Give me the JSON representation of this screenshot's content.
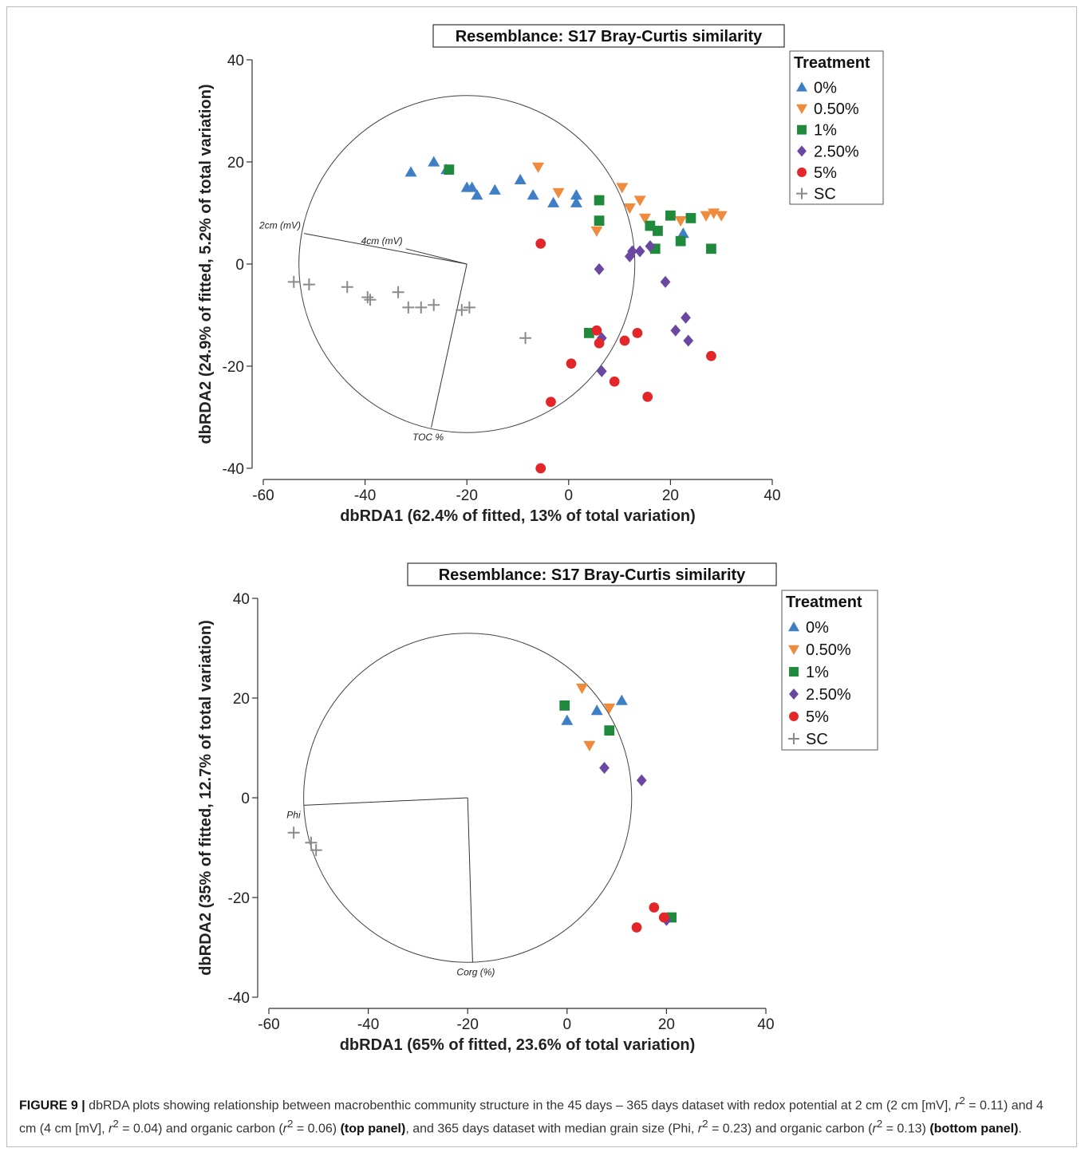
{
  "colors": {
    "0%": "#3f7fc6",
    "0.50%": "#f08a3c",
    "1%": "#1f8a3c",
    "2.50%": "#6a48a2",
    "5%": "#e3262a",
    "SC": "#8a8a8a"
  },
  "chart_data": [
    {
      "type": "scatter",
      "title": "Resemblance: S17 Bray-Curtis similarity",
      "xlabel": "dbRDA1 (62.4% of fitted, 13% of total variation)",
      "ylabel": "dbRDA2 (24.9% of fitted, 5.2% of total variation)",
      "xlim": [
        -60,
        40
      ],
      "ylim": [
        -40,
        40
      ],
      "xticks": [
        -60,
        -40,
        -20,
        0,
        20,
        40
      ],
      "yticks": [
        -40,
        -20,
        0,
        20,
        40
      ],
      "legend_title": "Treatment",
      "legend_position": "top-right",
      "circle": {
        "cx": -20,
        "cy": 0,
        "r": 33
      },
      "vectors": [
        {
          "label": "2cm (mV)",
          "x": -52,
          "y": 6
        },
        {
          "label": "4cm (mV)",
          "x": -32,
          "y": 3
        },
        {
          "label": "TOC %",
          "x": -27,
          "y": -32
        }
      ],
      "series": [
        {
          "name": "0%",
          "marker": "triangle-up",
          "points": [
            [
              -31,
              18
            ],
            [
              -26.5,
              20
            ],
            [
              -24,
              18.5
            ],
            [
              -20,
              15
            ],
            [
              -19,
              15
            ],
            [
              -18,
              13.5
            ],
            [
              -14.5,
              14.5
            ],
            [
              -9.5,
              16.5
            ],
            [
              -7,
              13.5
            ],
            [
              -3,
              12
            ],
            [
              1.5,
              13.5
            ],
            [
              1.5,
              12
            ],
            [
              22.5,
              6
            ]
          ]
        },
        {
          "name": "0.50%",
          "marker": "triangle-down",
          "points": [
            [
              -6,
              19
            ],
            [
              -2,
              14
            ],
            [
              5.5,
              6.5
            ],
            [
              10.5,
              15
            ],
            [
              12,
              11
            ],
            [
              14,
              12.5
            ],
            [
              15,
              9
            ],
            [
              22,
              8.5
            ],
            [
              27,
              9.5
            ],
            [
              28.5,
              10
            ],
            [
              30,
              9.5
            ]
          ]
        },
        {
          "name": "1%",
          "marker": "square",
          "points": [
            [
              -23.5,
              18.5
            ],
            [
              6,
              12.5
            ],
            [
              6,
              8.5
            ],
            [
              16,
              7.5
            ],
            [
              17.5,
              6.5
            ],
            [
              17,
              3
            ],
            [
              20,
              9.5
            ],
            [
              22,
              4.5
            ],
            [
              24,
              9
            ],
            [
              28,
              3
            ],
            [
              4,
              -13.5
            ]
          ]
        },
        {
          "name": "2.50%",
          "marker": "diamond",
          "points": [
            [
              6,
              -1
            ],
            [
              12,
              1.5
            ],
            [
              12.5,
              2.5
            ],
            [
              14,
              2.5
            ],
            [
              16,
              3.5
            ],
            [
              19,
              -3.5
            ],
            [
              21,
              -13
            ],
            [
              23,
              -10.5
            ],
            [
              23.5,
              -15
            ],
            [
              6.5,
              -14.5
            ],
            [
              6.5,
              -21
            ]
          ]
        },
        {
          "name": "5%",
          "marker": "circle",
          "points": [
            [
              -5.5,
              4
            ],
            [
              5.5,
              -13
            ],
            [
              6,
              -15.5
            ],
            [
              11,
              -15
            ],
            [
              13.5,
              -13.5
            ],
            [
              28,
              -18
            ],
            [
              0.5,
              -19.5
            ],
            [
              9,
              -23
            ],
            [
              15.5,
              -26
            ],
            [
              -3.5,
              -27
            ],
            [
              -5.5,
              -40
            ]
          ]
        },
        {
          "name": "SC",
          "marker": "plus",
          "points": [
            [
              -54,
              -3.5
            ],
            [
              -51,
              -4
            ],
            [
              -43.5,
              -4.5
            ],
            [
              -39.5,
              -6.5
            ],
            [
              -39,
              -7
            ],
            [
              -33.5,
              -5.5
            ],
            [
              -31.5,
              -8.5
            ],
            [
              -29,
              -8.5
            ],
            [
              -26.5,
              -8
            ],
            [
              -21,
              -9
            ],
            [
              -19.5,
              -8.5
            ],
            [
              -8.5,
              -14.5
            ]
          ]
        }
      ]
    },
    {
      "type": "scatter",
      "title": "Resemblance: S17 Bray-Curtis similarity",
      "xlabel": "dbRDA1 (65% of fitted, 23.6% of total variation)",
      "ylabel": "dbRDA2 (35% of fitted, 12.7% of total variation)",
      "xlim": [
        -60,
        40
      ],
      "ylim": [
        -40,
        40
      ],
      "xticks": [
        -60,
        -40,
        -20,
        0,
        20,
        40
      ],
      "yticks": [
        -40,
        -20,
        0,
        20,
        40
      ],
      "legend_title": "Treatment",
      "legend_position": "top-right",
      "circle": {
        "cx": -20,
        "cy": 0,
        "r": 33
      },
      "vectors": [
        {
          "label": "Phi",
          "x": -53,
          "y": -1.5
        },
        {
          "label": "Corg (%)",
          "x": -19,
          "y": -33
        }
      ],
      "series": [
        {
          "name": "0%",
          "marker": "triangle-up",
          "points": [
            [
              0,
              15.5
            ],
            [
              6,
              17.5
            ],
            [
              11,
              19.5
            ]
          ]
        },
        {
          "name": "0.50%",
          "marker": "triangle-down",
          "points": [
            [
              3,
              22
            ],
            [
              4.5,
              10.5
            ],
            [
              8.5,
              18
            ]
          ]
        },
        {
          "name": "1%",
          "marker": "square",
          "points": [
            [
              -0.5,
              18.5
            ],
            [
              8.5,
              13.5
            ],
            [
              21,
              -24
            ]
          ]
        },
        {
          "name": "2.50%",
          "marker": "diamond",
          "points": [
            [
              7.5,
              6
            ],
            [
              15,
              3.5
            ],
            [
              20,
              -24.5
            ]
          ]
        },
        {
          "name": "5%",
          "marker": "circle",
          "points": [
            [
              14,
              -26
            ],
            [
              17.5,
              -22
            ],
            [
              19.5,
              -24
            ]
          ]
        },
        {
          "name": "SC",
          "marker": "plus",
          "points": [
            [
              -55,
              -7
            ],
            [
              -51.5,
              -9
            ],
            [
              -50.5,
              -10.5
            ]
          ]
        }
      ]
    }
  ],
  "caption": {
    "fig_num": "FIGURE 9 |",
    "text_1": " dbRDA plots showing relationship between macrobenthic community structure in the 45 days – 365 days dataset with redox potential at 2 cm (2 cm [mV], ",
    "r": "r",
    "sq": "2",
    "eq_1": " = 0.11) and 4 cm (4 cm [mV], ",
    "eq_2": " = 0.04) and organic carbon (",
    "eq_3": " = 0.06) ",
    "bold_1": "(top panel)",
    "text_2": ", and 365 days dataset with median grain size (Phi, ",
    "eq_4": " = 0.23) and organic carbon (",
    "eq_5": " = 0.13) ",
    "bold_2": "(bottom panel)",
    "end": "."
  }
}
